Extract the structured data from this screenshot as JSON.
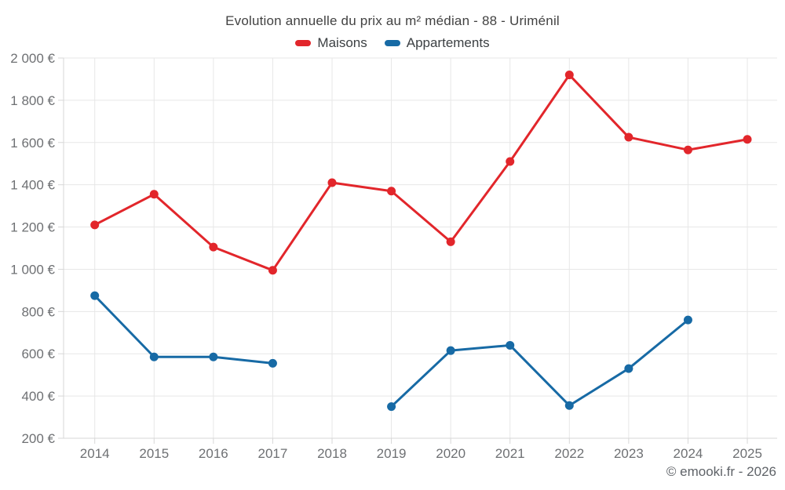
{
  "title": "Evolution annuelle du prix au m² médian - 88 - Uriménil",
  "footer": "© emooki.fr - 2026",
  "chart_data": {
    "type": "line",
    "title": "Evolution annuelle du prix au m² médian - 88 - Uriménil",
    "xlabel": "",
    "ylabel": "",
    "categories": [
      "2014",
      "2015",
      "2016",
      "2017",
      "2018",
      "2019",
      "2020",
      "2021",
      "2022",
      "2023",
      "2024",
      "2025"
    ],
    "series": [
      {
        "name": "Maisons",
        "color": "#e2262b",
        "values": [
          1210,
          1355,
          1105,
          995,
          1410,
          1370,
          1130,
          1510,
          1920,
          1625,
          1565,
          1615
        ]
      },
      {
        "name": "Appartements",
        "color": "#176aa5",
        "values": [
          875,
          585,
          585,
          555,
          null,
          350,
          615,
          640,
          355,
          530,
          760,
          null
        ]
      }
    ],
    "ylim": [
      200,
      2000
    ],
    "y_ticks": [
      200,
      400,
      600,
      800,
      1000,
      1200,
      1400,
      1600,
      1800,
      2000
    ],
    "y_tick_labels": [
      "200 €",
      "400 €",
      "600 €",
      "800 €",
      "1 000 €",
      "1 200 €",
      "1 400 €",
      "1 600 €",
      "1 800 €",
      "2 000 €"
    ],
    "grid": true,
    "legend_position": "top",
    "currency_suffix": " €"
  }
}
